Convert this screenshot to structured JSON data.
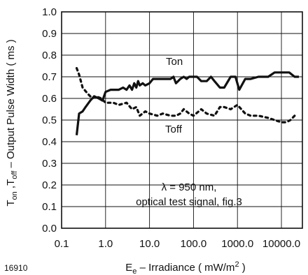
{
  "chart_data": {
    "type": "line",
    "figure_number": "16910",
    "x_scale": "log",
    "xlim": [
      0.1,
      30000
    ],
    "ylim": [
      0.0,
      1.0
    ],
    "grid": true,
    "x_ticks": [
      0.1,
      1,
      10,
      100,
      1000,
      10000
    ],
    "x_tick_labels": [
      "0.1",
      "1.0",
      "10.0",
      "100.0",
      "1000.0",
      "10000.0"
    ],
    "y_ticks": [
      0.0,
      0.1,
      0.2,
      0.3,
      0.4,
      0.5,
      0.6,
      0.7,
      0.8,
      0.9,
      1.0
    ],
    "y_tick_labels": [
      "0.0",
      "0.1",
      "0.2",
      "0.3",
      "0.4",
      "0.5",
      "0.6",
      "0.7",
      "0.8",
      "0.9",
      "1.0"
    ],
    "xlabel": {
      "main": "E",
      "sub": "e",
      "rest": " – Irradiance ( mW/m",
      "sup": "2",
      "end": " )"
    },
    "ylabel": {
      "p1": "T",
      "s1": "on",
      "p2": " ,T",
      "s2": "off",
      "p3": "  – Output Pulse Width ( ms )"
    },
    "annotation": {
      "line1": "λ = 950 nm,",
      "line2": "optical test signal, fig.3"
    },
    "series": [
      {
        "name": "Ton",
        "style": "solid",
        "x": [
          0.22,
          0.25,
          0.3,
          0.35,
          0.45,
          0.55,
          0.7,
          0.85,
          1.0,
          1.3,
          1.7,
          2.0,
          2.5,
          3.0,
          3.5,
          4.0,
          4.5,
          5.0,
          5.5,
          6.0,
          7.0,
          8.0,
          10,
          12,
          15,
          20,
          25,
          30,
          35,
          40,
          50,
          60,
          70,
          80,
          100,
          120,
          150,
          200,
          250,
          300,
          400,
          500,
          700,
          900,
          1100,
          1500,
          2000,
          3000,
          5000,
          7000,
          10000,
          15000,
          20000,
          25000
        ],
        "y": [
          0.43,
          0.53,
          0.54,
          0.56,
          0.59,
          0.61,
          0.6,
          0.59,
          0.63,
          0.64,
          0.64,
          0.64,
          0.65,
          0.64,
          0.66,
          0.64,
          0.67,
          0.65,
          0.68,
          0.66,
          0.67,
          0.66,
          0.67,
          0.69,
          0.69,
          0.69,
          0.69,
          0.69,
          0.7,
          0.67,
          0.69,
          0.7,
          0.69,
          0.7,
          0.7,
          0.7,
          0.68,
          0.68,
          0.7,
          0.68,
          0.65,
          0.65,
          0.7,
          0.7,
          0.64,
          0.69,
          0.69,
          0.7,
          0.7,
          0.72,
          0.72,
          0.72,
          0.7,
          0.7
        ]
      },
      {
        "name": "Toff",
        "style": "dotted",
        "x": [
          0.22,
          0.25,
          0.3,
          0.4,
          0.5,
          0.6,
          0.8,
          1.0,
          1.5,
          2.0,
          3.0,
          4.0,
          5.0,
          6.0,
          8.0,
          10,
          15,
          20,
          30,
          40,
          50,
          60,
          80,
          100,
          150,
          200,
          300,
          400,
          500,
          700,
          1000,
          1500,
          2000,
          3000,
          5000,
          7000,
          10000,
          13000,
          16000,
          20000
        ],
        "y": [
          0.74,
          0.71,
          0.65,
          0.62,
          0.6,
          0.61,
          0.6,
          0.58,
          0.58,
          0.57,
          0.58,
          0.55,
          0.56,
          0.52,
          0.54,
          0.53,
          0.52,
          0.53,
          0.52,
          0.52,
          0.53,
          0.55,
          0.53,
          0.52,
          0.55,
          0.53,
          0.52,
          0.56,
          0.56,
          0.55,
          0.57,
          0.53,
          0.52,
          0.52,
          0.51,
          0.5,
          0.49,
          0.49,
          0.5,
          0.52
        ]
      }
    ],
    "series_label_text": {
      "Ton": "Ton",
      "Toff": "Toff"
    }
  }
}
